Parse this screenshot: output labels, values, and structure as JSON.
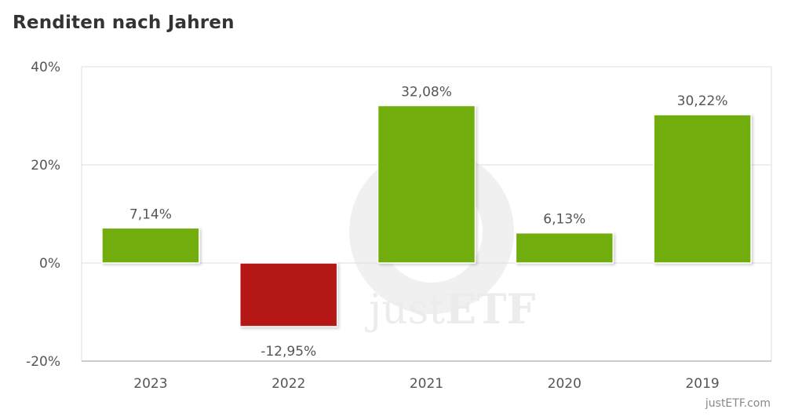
{
  "title": "Renditen nach Jahren",
  "credit": "justETF.com",
  "watermark": {
    "prefix": "just",
    "suffix": "ETF"
  },
  "colors": {
    "positive": "#71ad0a",
    "negative": "#b51212",
    "grid": "#dddddd",
    "text": "#555555"
  },
  "chart_data": {
    "type": "bar",
    "categories": [
      "2023",
      "2022",
      "2021",
      "2020",
      "2019"
    ],
    "values": [
      7.14,
      -12.95,
      32.08,
      6.13,
      30.22
    ],
    "value_labels": [
      "7,14%",
      "-12,95%",
      "32,08%",
      "6,13%",
      "30,22%"
    ],
    "ylim": [
      -20,
      40
    ],
    "yticks": [
      40,
      20,
      0,
      -20
    ],
    "ytick_labels": [
      "40%",
      "20%",
      "0%",
      "-20%"
    ],
    "grid": true,
    "legend": "none"
  }
}
